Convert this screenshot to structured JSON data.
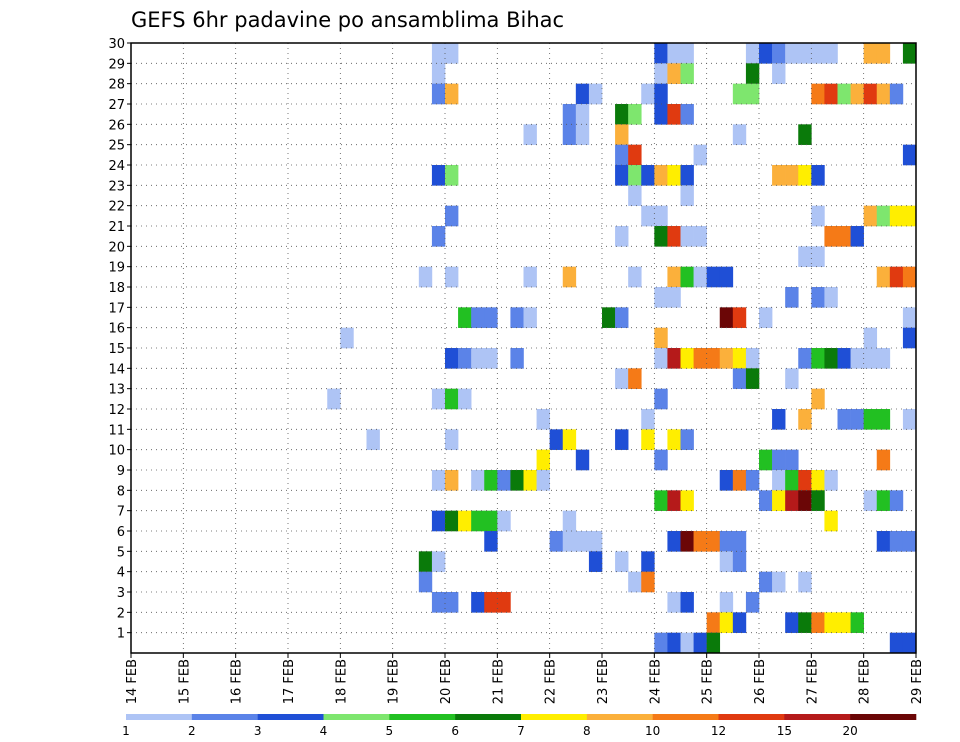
{
  "chart_data": {
    "type": "heatmap",
    "title": "GEFS 6hr padavine po ansamblima Bihac",
    "xlabel": "",
    "ylabel": "",
    "x_tick_labels": [
      "14 FEB",
      "15 FEB",
      "16 FEB",
      "17 FEB",
      "18 FEB",
      "19 FEB",
      "20 FEB",
      "21 FEB",
      "22 FEB",
      "23 FEB",
      "24 FEB",
      "25 FEB",
      "26 FEB",
      "27 FEB",
      "28 FEB",
      "29 FEB"
    ],
    "y_tick_labels": [
      "1",
      "2",
      "3",
      "4",
      "5",
      "6",
      "7",
      "8",
      "9",
      "10",
      "11",
      "12",
      "13",
      "14",
      "15",
      "16",
      "17",
      "18",
      "19",
      "20",
      "21",
      "22",
      "23",
      "24",
      "25",
      "26",
      "27",
      "28",
      "29",
      "30"
    ],
    "x_range": [
      0,
      60
    ],
    "y_range": [
      0,
      30
    ],
    "time_step_hours": 6,
    "legend": {
      "labels": [
        "1",
        "2",
        "3",
        "4",
        "5",
        "6",
        "7",
        "8",
        "10",
        "12",
        "15",
        "20"
      ],
      "colors": [
        "#aec4f5",
        "#5b83e8",
        "#1f4fd6",
        "#7ee66e",
        "#22c022",
        "#0a7a0a",
        "#ffee00",
        "#fbb03b",
        "#f57a17",
        "#e03a10",
        "#b51a1a",
        "#6b0606"
      ]
    },
    "cells": [
      {
        "member": 30,
        "steps": [
          [
            23,
            1
          ],
          [
            24,
            1
          ],
          [
            40,
            3
          ],
          [
            41,
            1
          ],
          [
            42,
            1
          ],
          [
            47,
            1
          ],
          [
            48,
            3
          ],
          [
            49,
            2
          ],
          [
            50,
            1
          ],
          [
            51,
            1
          ],
          [
            52,
            1
          ],
          [
            53,
            1
          ],
          [
            56,
            9
          ],
          [
            57,
            8
          ],
          [
            59,
            6
          ]
        ]
      },
      {
        "member": 29,
        "steps": [
          [
            23,
            1
          ],
          [
            40,
            1
          ],
          [
            41,
            9
          ],
          [
            42,
            4
          ],
          [
            47,
            6
          ],
          [
            49,
            1
          ]
        ]
      },
      {
        "member": 28,
        "steps": [
          [
            23,
            2
          ],
          [
            24,
            8
          ],
          [
            34,
            3
          ],
          [
            35,
            1
          ],
          [
            39,
            1
          ],
          [
            40,
            3
          ],
          [
            46,
            4
          ],
          [
            47,
            4
          ],
          [
            52,
            10
          ],
          [
            53,
            12
          ],
          [
            54,
            4
          ],
          [
            55,
            8
          ],
          [
            56,
            12
          ],
          [
            57,
            8
          ],
          [
            58,
            2
          ]
        ]
      },
      {
        "member": 27,
        "steps": [
          [
            33,
            2
          ],
          [
            34,
            1
          ],
          [
            37,
            6
          ],
          [
            38,
            4
          ],
          [
            40,
            3
          ],
          [
            41,
            12
          ],
          [
            42,
            2
          ]
        ]
      },
      {
        "member": 26,
        "steps": [
          [
            30,
            1
          ],
          [
            33,
            2
          ],
          [
            34,
            1
          ],
          [
            37,
            8
          ],
          [
            46,
            1
          ],
          [
            51,
            6
          ]
        ]
      },
      {
        "member": 25,
        "steps": [
          [
            37,
            2
          ],
          [
            38,
            12
          ],
          [
            43,
            1
          ],
          [
            59,
            3
          ]
        ]
      },
      {
        "member": 24,
        "steps": [
          [
            23,
            3
          ],
          [
            24,
            4
          ],
          [
            37,
            3
          ],
          [
            38,
            4
          ],
          [
            39,
            3
          ],
          [
            40,
            8
          ],
          [
            41,
            7
          ],
          [
            42,
            3
          ],
          [
            49,
            9
          ],
          [
            50,
            8
          ],
          [
            51,
            7
          ],
          [
            52,
            3
          ]
        ]
      },
      {
        "member": 23,
        "steps": [
          [
            38,
            1
          ],
          [
            42,
            1
          ]
        ]
      },
      {
        "member": 22,
        "steps": [
          [
            24,
            2
          ],
          [
            39,
            1
          ],
          [
            40,
            1
          ],
          [
            52,
            1
          ],
          [
            56,
            9
          ],
          [
            57,
            4
          ],
          [
            58,
            7
          ],
          [
            59,
            7
          ]
        ]
      },
      {
        "member": 21,
        "steps": [
          [
            23,
            2
          ],
          [
            37,
            1
          ],
          [
            40,
            6
          ],
          [
            41,
            12
          ],
          [
            42,
            1
          ],
          [
            43,
            1
          ],
          [
            53,
            10
          ],
          [
            54,
            10
          ],
          [
            55,
            3
          ]
        ]
      },
      {
        "member": 20,
        "steps": [
          [
            51,
            1
          ],
          [
            52,
            1
          ]
        ]
      },
      {
        "member": 19,
        "steps": [
          [
            22,
            1
          ],
          [
            24,
            1
          ],
          [
            30,
            1
          ],
          [
            33,
            9
          ],
          [
            38,
            1
          ],
          [
            41,
            9
          ],
          [
            42,
            5
          ],
          [
            43,
            1
          ],
          [
            44,
            3
          ],
          [
            45,
            3
          ],
          [
            57,
            8
          ],
          [
            58,
            12
          ],
          [
            59,
            10
          ]
        ]
      },
      {
        "member": 18,
        "steps": [
          [
            40,
            1
          ],
          [
            41,
            1
          ],
          [
            50,
            2
          ],
          [
            52,
            2
          ],
          [
            53,
            1
          ]
        ]
      },
      {
        "member": 17,
        "steps": [
          [
            25,
            5
          ],
          [
            26,
            2
          ],
          [
            27,
            2
          ],
          [
            29,
            2
          ],
          [
            30,
            1
          ],
          [
            36,
            6
          ],
          [
            37,
            2
          ],
          [
            45,
            20
          ],
          [
            46,
            12
          ],
          [
            48,
            1
          ],
          [
            59,
            1
          ]
        ]
      },
      {
        "member": 16,
        "steps": [
          [
            16,
            1
          ],
          [
            40,
            8
          ],
          [
            56,
            1
          ],
          [
            59,
            3
          ]
        ]
      },
      {
        "member": 15,
        "steps": [
          [
            24,
            3
          ],
          [
            25,
            2
          ],
          [
            26,
            1
          ],
          [
            27,
            1
          ],
          [
            29,
            2
          ],
          [
            40,
            1
          ],
          [
            41,
            15
          ],
          [
            42,
            7
          ],
          [
            43,
            10
          ],
          [
            44,
            10
          ],
          [
            45,
            8
          ],
          [
            46,
            7
          ],
          [
            47,
            1
          ],
          [
            51,
            2
          ],
          [
            52,
            5
          ],
          [
            53,
            6
          ],
          [
            54,
            3
          ],
          [
            55,
            1
          ],
          [
            56,
            1
          ],
          [
            57,
            1
          ]
        ]
      },
      {
        "member": 14,
        "steps": [
          [
            37,
            1
          ],
          [
            38,
            10
          ],
          [
            46,
            2
          ],
          [
            47,
            6
          ],
          [
            50,
            1
          ]
        ]
      },
      {
        "member": 13,
        "steps": [
          [
            15,
            1
          ],
          [
            23,
            1
          ],
          [
            24,
            5
          ],
          [
            25,
            1
          ],
          [
            40,
            2
          ],
          [
            52,
            8
          ]
        ]
      },
      {
        "member": 12,
        "steps": [
          [
            31,
            1
          ],
          [
            39,
            1
          ],
          [
            49,
            3
          ],
          [
            51,
            8
          ],
          [
            54,
            2
          ],
          [
            55,
            2
          ],
          [
            56,
            5
          ],
          [
            57,
            5
          ],
          [
            59,
            1
          ]
        ]
      },
      {
        "member": 11,
        "steps": [
          [
            18,
            1
          ],
          [
            24,
            1
          ],
          [
            32,
            3
          ],
          [
            33,
            7
          ],
          [
            37,
            3
          ],
          [
            39,
            7
          ],
          [
            41,
            7
          ],
          [
            42,
            2
          ]
        ]
      },
      {
        "member": 10,
        "steps": [
          [
            31,
            7
          ],
          [
            34,
            3
          ],
          [
            40,
            2
          ],
          [
            48,
            5
          ],
          [
            49,
            2
          ],
          [
            50,
            2
          ],
          [
            57,
            10
          ]
        ]
      },
      {
        "member": 9,
        "steps": [
          [
            23,
            1
          ],
          [
            24,
            8
          ],
          [
            26,
            1
          ],
          [
            27,
            5
          ],
          [
            28,
            2
          ],
          [
            29,
            6
          ],
          [
            30,
            7
          ],
          [
            31,
            1
          ],
          [
            45,
            3
          ],
          [
            46,
            10
          ],
          [
            47,
            2
          ],
          [
            49,
            1
          ],
          [
            50,
            5
          ],
          [
            51,
            12
          ],
          [
            52,
            7
          ],
          [
            53,
            1
          ]
        ]
      },
      {
        "member": 8,
        "steps": [
          [
            40,
            5
          ],
          [
            41,
            15
          ],
          [
            42,
            7
          ],
          [
            48,
            2
          ],
          [
            49,
            7
          ],
          [
            50,
            15
          ],
          [
            51,
            20
          ],
          [
            52,
            6
          ],
          [
            56,
            1
          ],
          [
            57,
            5
          ],
          [
            58,
            2
          ]
        ]
      },
      {
        "member": 7,
        "steps": [
          [
            23,
            3
          ],
          [
            24,
            6
          ],
          [
            25,
            7
          ],
          [
            26,
            5
          ],
          [
            27,
            5
          ],
          [
            28,
            1
          ],
          [
            33,
            1
          ],
          [
            53,
            7
          ]
        ]
      },
      {
        "member": 6,
        "steps": [
          [
            27,
            3
          ],
          [
            32,
            2
          ],
          [
            33,
            1
          ],
          [
            34,
            1
          ],
          [
            35,
            1
          ],
          [
            41,
            3
          ],
          [
            42,
            20
          ],
          [
            43,
            10
          ],
          [
            44,
            10
          ],
          [
            45,
            2
          ],
          [
            46,
            2
          ],
          [
            57,
            3
          ],
          [
            58,
            2
          ],
          [
            59,
            2
          ]
        ]
      },
      {
        "member": 5,
        "steps": [
          [
            22,
            6
          ],
          [
            23,
            1
          ],
          [
            35,
            3
          ],
          [
            37,
            1
          ],
          [
            39,
            3
          ],
          [
            45,
            1
          ],
          [
            46,
            2
          ]
        ]
      },
      {
        "member": 4,
        "steps": [
          [
            22,
            2
          ],
          [
            38,
            1
          ],
          [
            39,
            10
          ],
          [
            48,
            2
          ],
          [
            49,
            1
          ],
          [
            51,
            1
          ]
        ]
      },
      {
        "member": 3,
        "steps": [
          [
            23,
            2
          ],
          [
            24,
            2
          ],
          [
            26,
            3
          ],
          [
            27,
            12
          ],
          [
            28,
            12
          ],
          [
            41,
            1
          ],
          [
            42,
            3
          ],
          [
            45,
            1
          ],
          [
            47,
            2
          ]
        ]
      },
      {
        "member": 2,
        "steps": [
          [
            44,
            10
          ],
          [
            45,
            7
          ],
          [
            46,
            3
          ],
          [
            50,
            3
          ],
          [
            51,
            6
          ],
          [
            52,
            10
          ],
          [
            53,
            7
          ],
          [
            54,
            7
          ],
          [
            55,
            5
          ]
        ]
      },
      {
        "member": 1,
        "steps": [
          [
            40,
            2
          ],
          [
            41,
            3
          ],
          [
            42,
            1
          ],
          [
            43,
            3
          ],
          [
            44,
            6
          ],
          [
            58,
            3
          ],
          [
            59,
            3
          ]
        ]
      }
    ]
  }
}
